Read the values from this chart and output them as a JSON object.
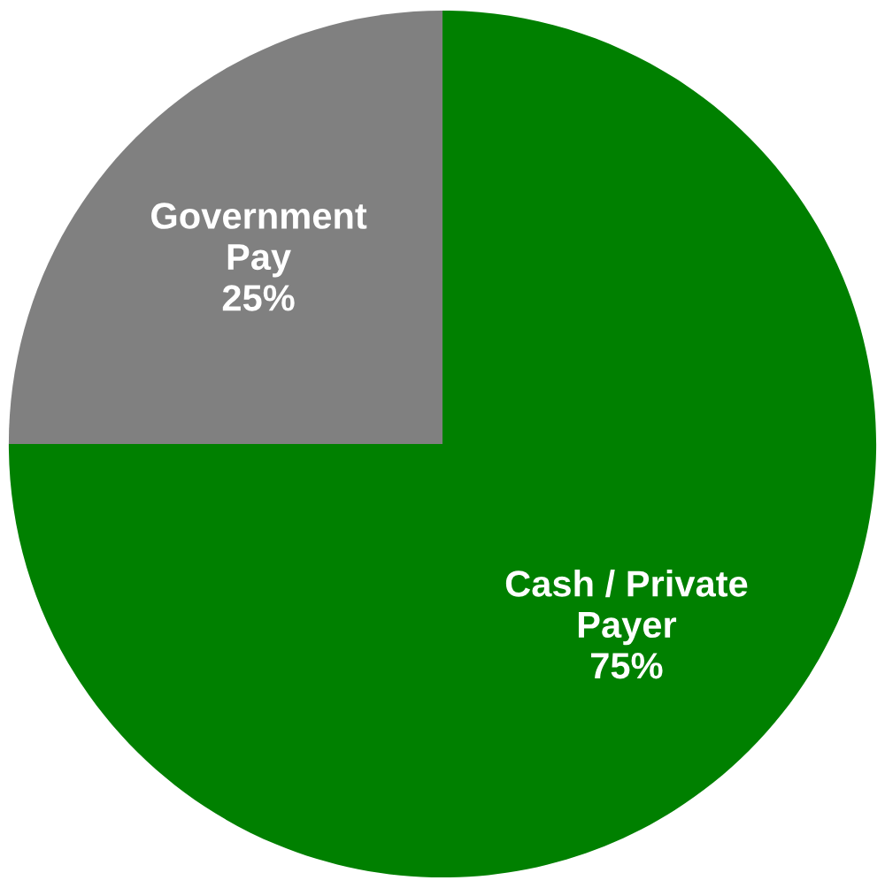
{
  "chart_data": {
    "type": "pie",
    "categories": [
      "Government\nPay",
      "Cash / Private\nPayer"
    ],
    "values": [
      25,
      75
    ],
    "colors": [
      "#808080",
      "#008000"
    ],
    "value_labels": [
      "25%",
      "75%"
    ],
    "legend": false
  }
}
